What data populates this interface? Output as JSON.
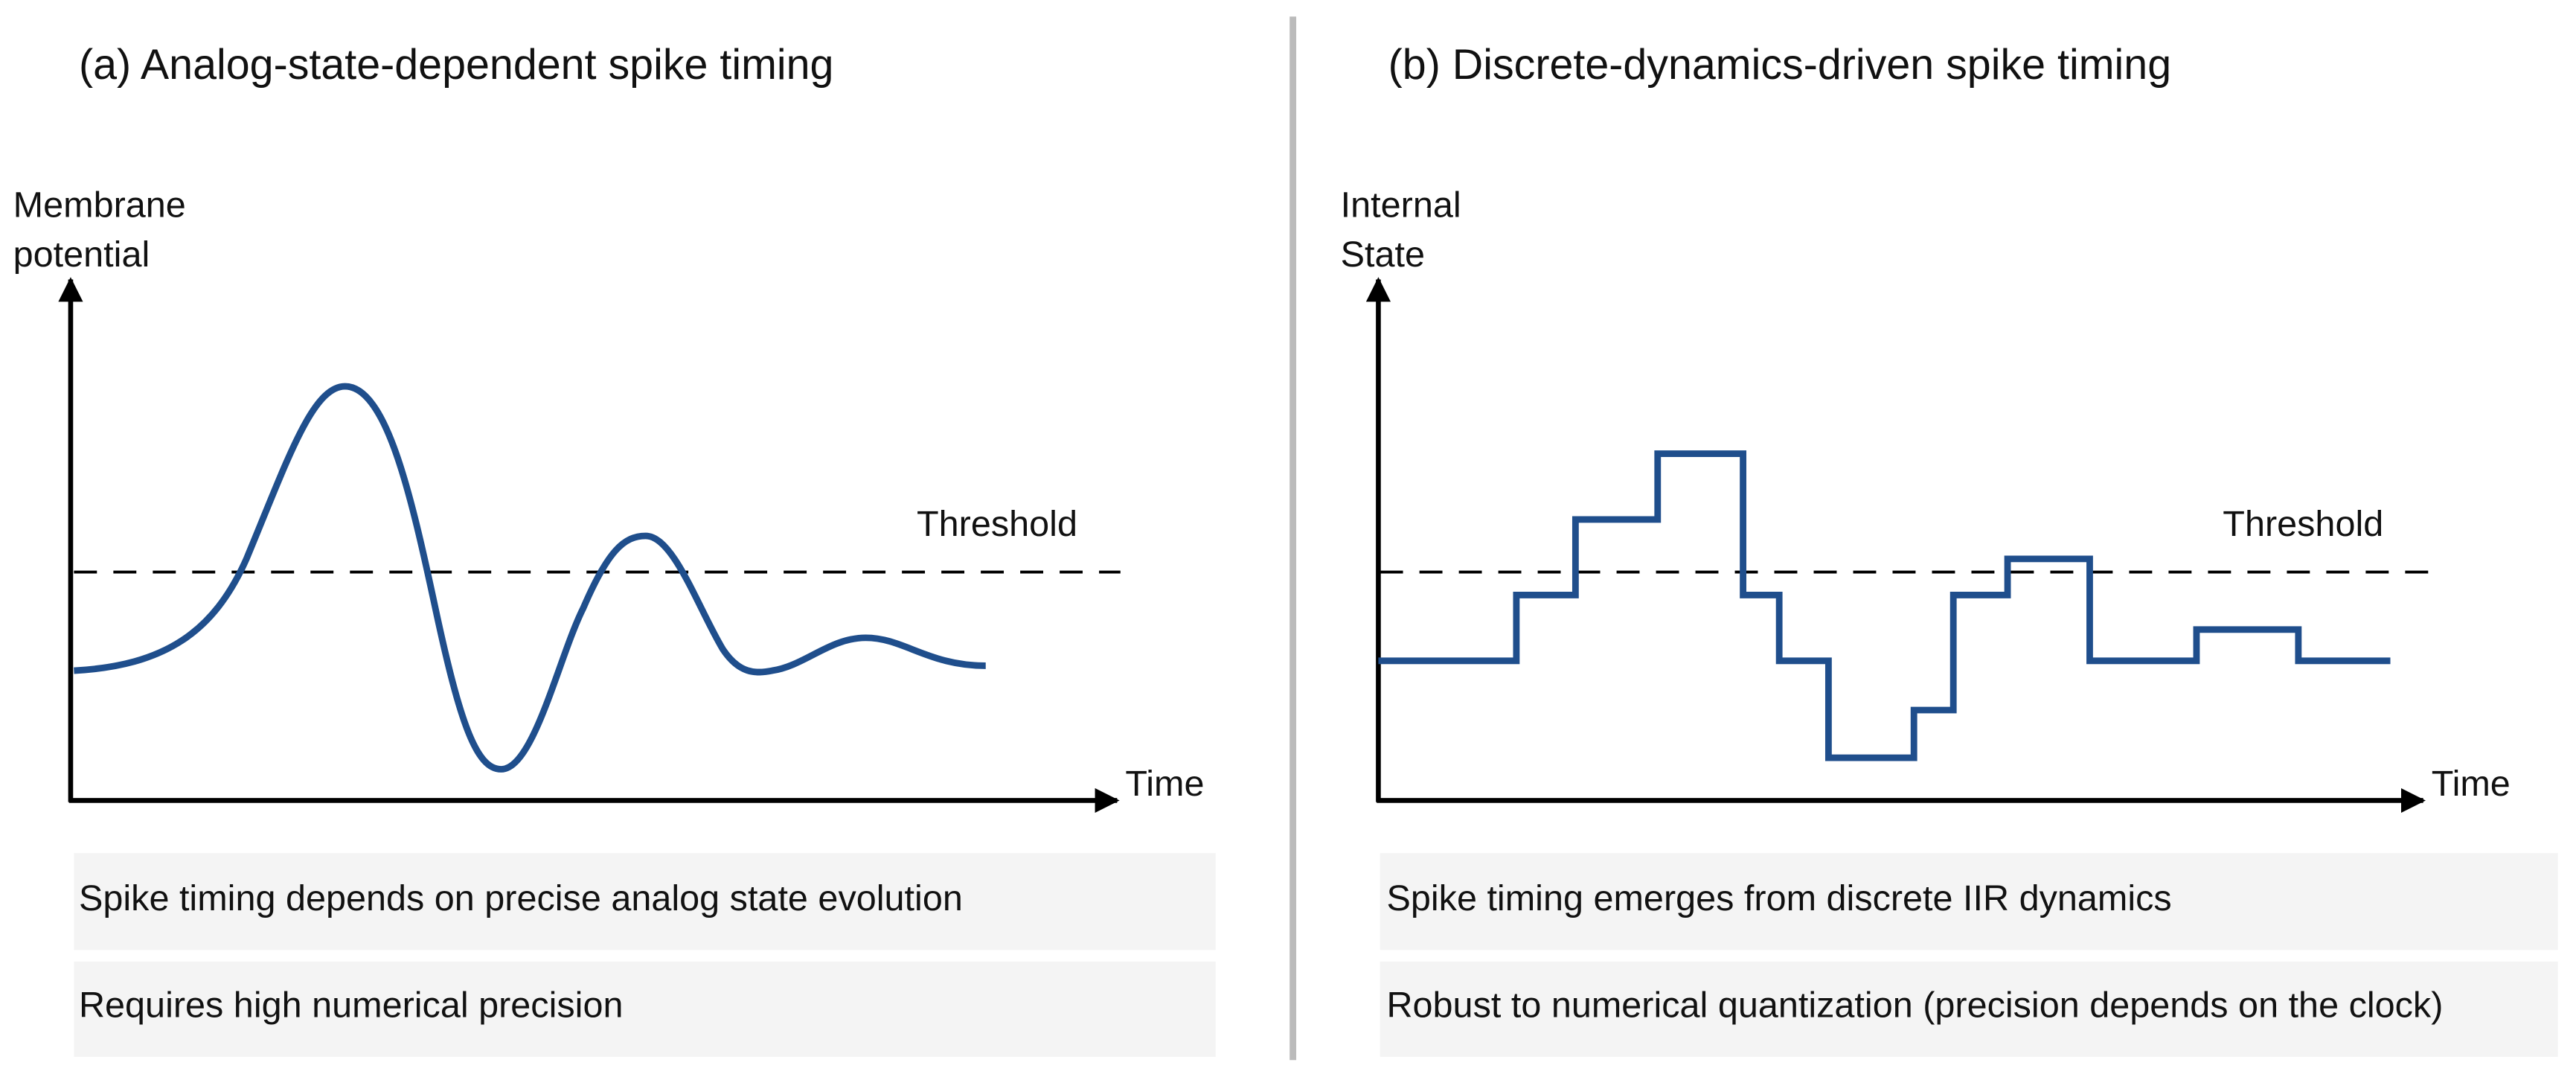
{
  "panels": [
    {
      "title": "(a) Analog-state-dependent spike timing",
      "y_label": [
        "Membrane",
        "potential"
      ],
      "x_label": "Time",
      "threshold_label": "Threshold",
      "notes": [
        "Spike timing depends on precise analog state evolution",
        "Requires high numerical precision"
      ]
    },
    {
      "title": "(b) Discrete-dynamics-driven spike timing",
      "y_label": [
        "Internal",
        "State"
      ],
      "x_label": "Time",
      "threshold_label": "Threshold",
      "notes": [
        "Spike timing emerges from discrete IIR dynamics",
        "Robust to numerical quantization (precision depends on the clock)"
      ]
    }
  ]
}
